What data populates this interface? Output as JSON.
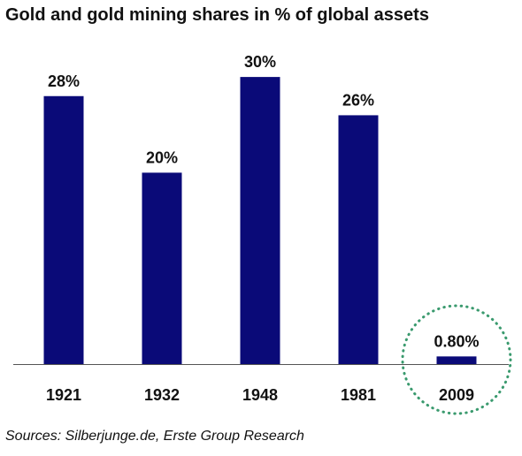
{
  "chart_data": {
    "type": "bar",
    "title": "Gold and gold mining shares in % of global assets",
    "categories": [
      "1921",
      "1932",
      "1948",
      "1981",
      "2009"
    ],
    "values": [
      28,
      20,
      30,
      26,
      0.8
    ],
    "value_labels": [
      "28%",
      "20%",
      "30%",
      "26%",
      "0.80%"
    ],
    "xlabel": "",
    "ylabel": "",
    "ylim": [
      0,
      30
    ],
    "grid": false,
    "bar_color": "#0a0a78",
    "highlight": {
      "category": "2009",
      "shape": "dotted-circle",
      "color": "#3a9a6e"
    }
  },
  "source": "Sources: Silberjunge.de, Erste Group Research"
}
